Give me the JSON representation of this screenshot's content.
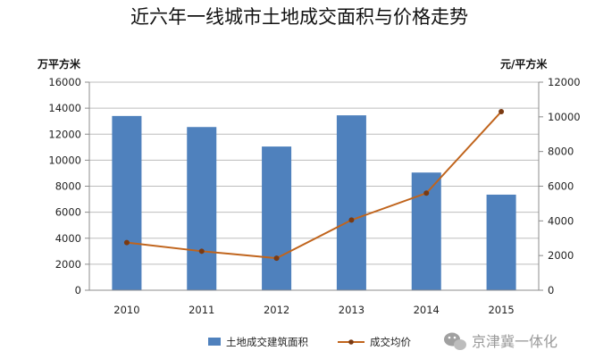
{
  "chart_data": {
    "type": "bar+line",
    "title": "近六年一线城市土地成交面积与价格走势",
    "categories": [
      "2010",
      "2011",
      "2012",
      "2013",
      "2014",
      "2015"
    ],
    "series": [
      {
        "name": "土地成交建筑面积",
        "type": "bar",
        "axis": "left",
        "values": [
          13400,
          12550,
          11050,
          13450,
          9050,
          7350
        ]
      },
      {
        "name": "成交均价",
        "type": "line",
        "axis": "right",
        "values": [
          2750,
          2250,
          1850,
          4050,
          5600,
          10300
        ]
      }
    ],
    "y_left": {
      "label": "万平方米",
      "min": 0,
      "max": 16000,
      "ticks": [
        "0",
        "2000",
        "4000",
        "6000",
        "8000",
        "10000",
        "12000",
        "14000",
        "16000"
      ]
    },
    "y_right": {
      "label": "元/平方米",
      "min": 0,
      "max": 12000,
      "ticks": [
        "0",
        "2000",
        "4000",
        "6000",
        "8000",
        "10000",
        "12000"
      ]
    },
    "grid": "horizontal",
    "legend_position": "bottom",
    "colors": {
      "bar": "#4f81bd",
      "line": "#c0641c",
      "marker": "#7a3a12",
      "grid": "#bdbdbd",
      "axis": "#8c8c8c"
    },
    "watermark": {
      "icon": "wechat-icon",
      "text": "京津冀一体化"
    }
  }
}
